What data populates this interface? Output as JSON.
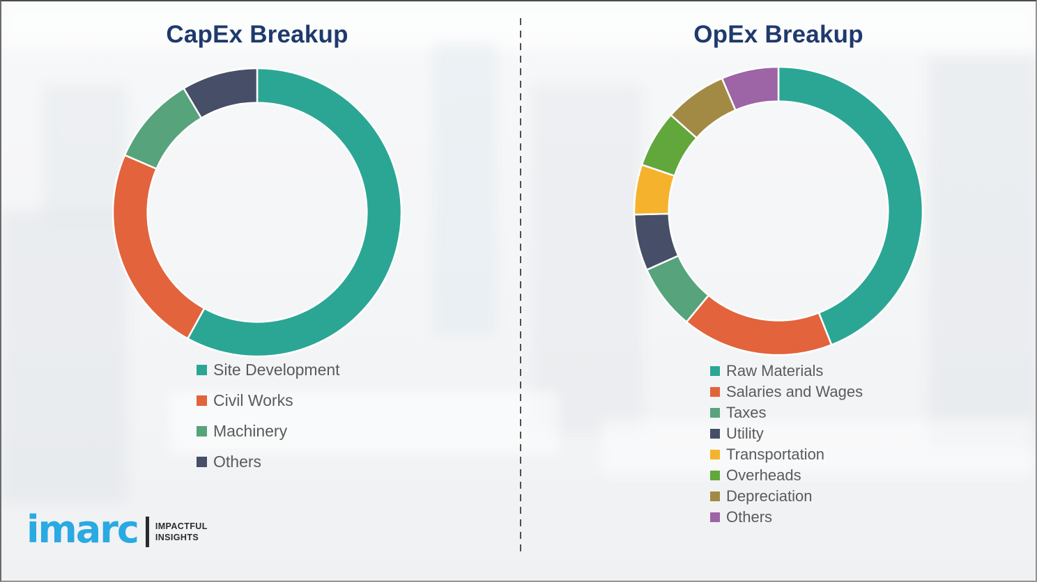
{
  "theme": {
    "title_color": "#1F3A6C",
    "legend_text_color": "#5A5A5A",
    "divider_color": "#4F4F4F",
    "brand_blue": "#2AA9E2"
  },
  "brand": {
    "logo_text": "imarc",
    "tagline_line1": "IMPACTFUL",
    "tagline_line2": "INSIGHTS"
  },
  "chart_data": [
    {
      "type": "pie",
      "subtype": "donut",
      "title": "CapEx Breakup",
      "labels": [
        "Site Development",
        "Civil Works",
        "Machinery",
        "Others"
      ],
      "values": [
        58,
        23.5,
        10,
        8.5
      ],
      "colors": [
        "#2BA695",
        "#E2633C",
        "#57A37C",
        "#464E68"
      ],
      "start_angle_deg": 0,
      "direction": "clockwise",
      "inner_radius_ratio": 0.76,
      "legend_position": "below-left",
      "data_labels_shown": false
    },
    {
      "type": "pie",
      "subtype": "donut",
      "title": "OpEx Breakup",
      "labels": [
        "Raw Materials",
        "Salaries and Wages",
        "Taxes",
        "Utility",
        "Transportation",
        "Overheads",
        "Depreciation",
        "Others"
      ],
      "values": [
        44,
        17,
        7.3,
        6.3,
        5.6,
        6.4,
        7,
        6.4
      ],
      "colors": [
        "#2BA695",
        "#E2633C",
        "#57A37C",
        "#464E68",
        "#F5B32D",
        "#62A73C",
        "#A28A45",
        "#9D64A6"
      ],
      "start_angle_deg": 0,
      "direction": "clockwise",
      "inner_radius_ratio": 0.76,
      "legend_position": "below-left",
      "data_labels_shown": false
    }
  ]
}
